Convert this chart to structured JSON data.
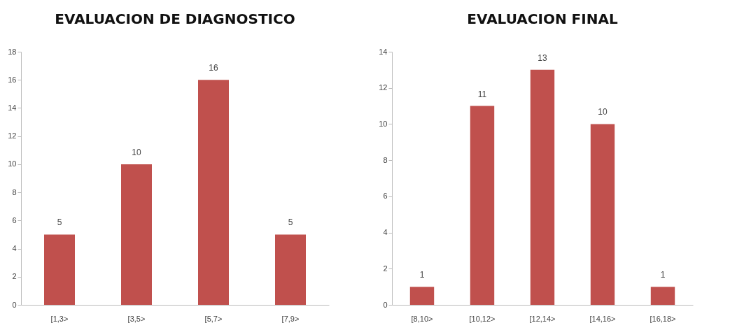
{
  "chart_data": [
    {
      "type": "bar",
      "title": "EVALUACION DE DIAGNOSTICO",
      "categories": [
        "[1,3>",
        "[3,5>",
        "[5,7>",
        "[7,9>"
      ],
      "values": [
        5,
        10,
        16,
        5
      ],
      "color": "#c0504d",
      "ylim": [
        0,
        18
      ],
      "yticks": [
        0,
        2,
        4,
        6,
        8,
        10,
        12,
        14,
        16,
        18
      ],
      "data_labels": true,
      "grid": false
    },
    {
      "type": "bar",
      "title": "EVALUACION FINAL",
      "categories": [
        "[8,10>",
        "[10,12>",
        "[12,14>",
        "[14,16>",
        "[16,18>"
      ],
      "values": [
        1,
        11,
        13,
        10,
        1
      ],
      "color": "#c0504d",
      "ylim": [
        0,
        14
      ],
      "yticks": [
        0,
        2,
        4,
        6,
        8,
        10,
        12,
        14
      ],
      "data_labels": true,
      "grid": false
    }
  ]
}
